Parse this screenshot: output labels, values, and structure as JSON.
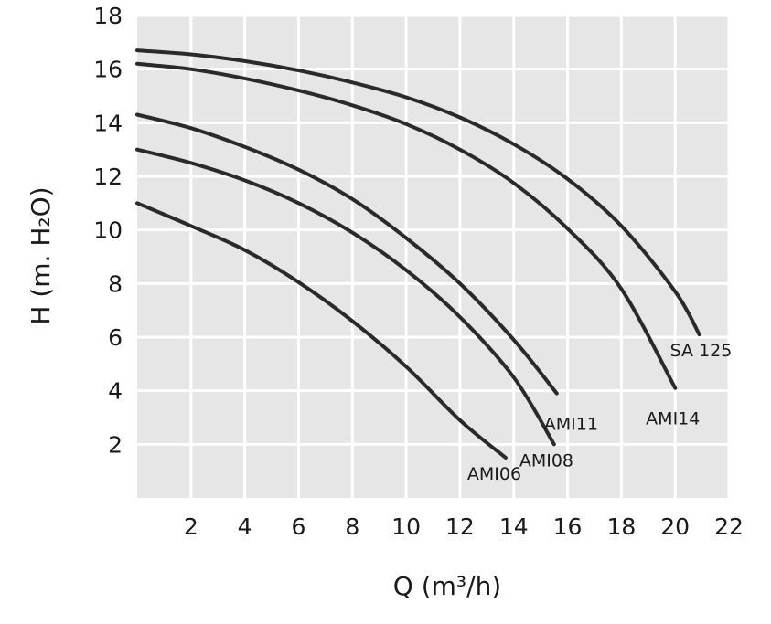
{
  "chart_data": {
    "type": "line",
    "title": "",
    "xlabel": "Q (m³/h)",
    "ylabel": "H (m. H₂O)",
    "xlim": [
      0,
      22
    ],
    "ylim": [
      0,
      18
    ],
    "x_ticks": [
      2,
      4,
      6,
      8,
      10,
      12,
      14,
      16,
      18,
      20,
      22
    ],
    "y_ticks": [
      2,
      4,
      6,
      8,
      10,
      12,
      14,
      16,
      18
    ],
    "grid": true,
    "legend": "none",
    "background_color": "#e6e6e6",
    "grid_color": "#ffffff",
    "line_color": "#2a2a2a",
    "series": [
      {
        "name": "AMI06",
        "x": [
          0,
          2,
          4,
          6,
          8,
          10,
          12,
          13.7
        ],
        "y": [
          11,
          10.15,
          9.25,
          8.05,
          6.6,
          4.9,
          2.9,
          1.5
        ]
      },
      {
        "name": "AMI08",
        "x": [
          0,
          2,
          4,
          6,
          8,
          10,
          12,
          14,
          15.5
        ],
        "y": [
          13,
          12.5,
          11.85,
          11.0,
          9.9,
          8.5,
          6.75,
          4.5,
          2.0
        ]
      },
      {
        "name": "AMI11",
        "x": [
          0,
          2,
          4,
          6,
          8,
          10,
          12,
          14,
          15.6
        ],
        "y": [
          14.3,
          13.8,
          13.1,
          12.25,
          11.15,
          9.7,
          8.0,
          5.9,
          3.9
        ]
      },
      {
        "name": "AMI14",
        "x": [
          0,
          2,
          4,
          6,
          8,
          10,
          12,
          14,
          16,
          18,
          20
        ],
        "y": [
          16.2,
          16.0,
          15.65,
          15.2,
          14.65,
          13.95,
          13.0,
          11.75,
          10.05,
          7.8,
          4.1
        ]
      },
      {
        "name": "SA 125",
        "x": [
          0,
          2,
          4,
          6,
          8,
          10,
          12,
          14,
          16,
          18,
          20,
          20.9
        ],
        "y": [
          16.7,
          16.55,
          16.3,
          15.95,
          15.5,
          14.95,
          14.2,
          13.2,
          11.9,
          10.15,
          7.7,
          6.1
        ]
      }
    ]
  }
}
